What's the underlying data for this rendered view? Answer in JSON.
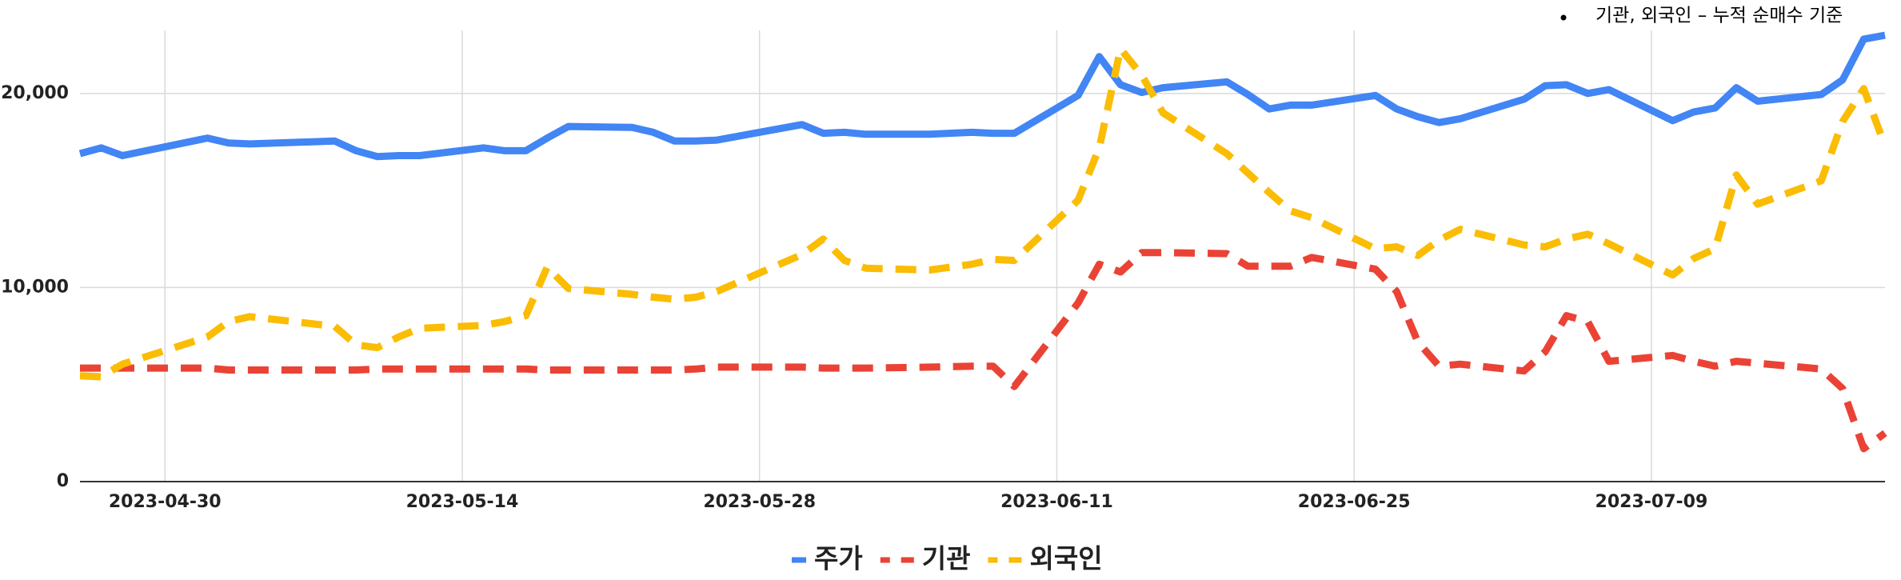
{
  "chart_data": {
    "type": "line",
    "annotation": "기관, 외국인 – 누적 순매수 기준",
    "x": [
      "2023-04-26",
      "2023-04-27",
      "2023-04-28",
      "2023-05-02",
      "2023-05-03",
      "2023-05-04",
      "2023-05-08",
      "2023-05-09",
      "2023-05-10",
      "2023-05-11",
      "2023-05-12",
      "2023-05-15",
      "2023-05-16",
      "2023-05-17",
      "2023-05-18",
      "2023-05-19",
      "2023-05-22",
      "2023-05-23",
      "2023-05-24",
      "2023-05-25",
      "2023-05-26",
      "2023-05-30",
      "2023-05-31",
      "2023-06-01",
      "2023-06-02",
      "2023-06-05",
      "2023-06-07",
      "2023-06-08",
      "2023-06-09",
      "2023-06-12",
      "2023-06-13",
      "2023-06-14",
      "2023-06-15",
      "2023-06-16",
      "2023-06-19",
      "2023-06-20",
      "2023-06-21",
      "2023-06-22",
      "2023-06-23",
      "2023-06-26",
      "2023-06-27",
      "2023-06-28",
      "2023-06-29",
      "2023-06-30",
      "2023-07-03",
      "2023-07-04",
      "2023-07-05",
      "2023-07-06",
      "2023-07-07",
      "2023-07-10",
      "2023-07-11",
      "2023-07-12",
      "2023-07-13",
      "2023-07-14",
      "2023-07-17",
      "2023-07-18",
      "2023-07-19",
      "2023-07-20"
    ],
    "series": [
      {
        "name": "주가",
        "color": "#4285f4",
        "style": "solid",
        "values": [
          16900,
          17200,
          16800,
          17700,
          17450,
          17400,
          17550,
          17050,
          16750,
          16800,
          16800,
          17200,
          17050,
          17050,
          17700,
          18300,
          18250,
          18000,
          17550,
          17550,
          17600,
          18400,
          17950,
          18000,
          17900,
          17900,
          18000,
          17950,
          17950,
          19900,
          21900,
          20450,
          20050,
          20300,
          20600,
          19950,
          19200,
          19400,
          19400,
          19900,
          19200,
          18800,
          18500,
          18700,
          19700,
          20400,
          20450,
          20000,
          20200,
          18600,
          19050,
          19250,
          20300,
          19600,
          19950,
          20700,
          22800,
          23000
        ]
      },
      {
        "name": "기관",
        "color": "#ea4335",
        "style": "dashed",
        "values": [
          5850,
          5850,
          5850,
          5850,
          5750,
          5750,
          5750,
          5750,
          5800,
          5800,
          5800,
          5800,
          5800,
          5800,
          5750,
          5750,
          5750,
          5750,
          5750,
          5800,
          5900,
          5900,
          5850,
          5850,
          5850,
          5900,
          5950,
          5950,
          4900,
          9200,
          11200,
          10800,
          11800,
          11800,
          11750,
          11100,
          11100,
          11100,
          11550,
          10950,
          9800,
          7200,
          5950,
          6050,
          5700,
          6700,
          8550,
          8250,
          6200,
          6500,
          6200,
          5950,
          6200,
          6100,
          5800,
          4800,
          1700,
          2500
        ]
      },
      {
        "name": "외국인",
        "color": "#fbbc04",
        "style": "dashed",
        "values": [
          5450,
          5400,
          6050,
          7450,
          8250,
          8500,
          8000,
          7050,
          6900,
          7450,
          7900,
          8050,
          8250,
          8550,
          11050,
          9950,
          9650,
          9500,
          9400,
          9500,
          9800,
          11700,
          12500,
          11400,
          11000,
          10900,
          11200,
          11450,
          11400,
          14500,
          17200,
          22300,
          20950,
          19000,
          16900,
          15900,
          14900,
          13950,
          13600,
          12000,
          12100,
          11650,
          12450,
          13000,
          12200,
          12100,
          12500,
          12750,
          12250,
          10650,
          11500,
          12000,
          15800,
          14300,
          15500,
          18550,
          20250,
          17300
        ]
      }
    ],
    "xlim": [
      "2023-04-26",
      "2023-07-20"
    ],
    "xticks": [
      "2023-04-30",
      "2023-05-14",
      "2023-05-28",
      "2023-06-11",
      "2023-06-25",
      "2023-07-09"
    ],
    "ylim": [
      0,
      23250
    ],
    "yticks": [
      0,
      {
        "value": 10000,
        "label": "10,000"
      },
      {
        "value": 20000,
        "label": "20,000"
      }
    ],
    "grid": true,
    "legend": "bottom"
  }
}
